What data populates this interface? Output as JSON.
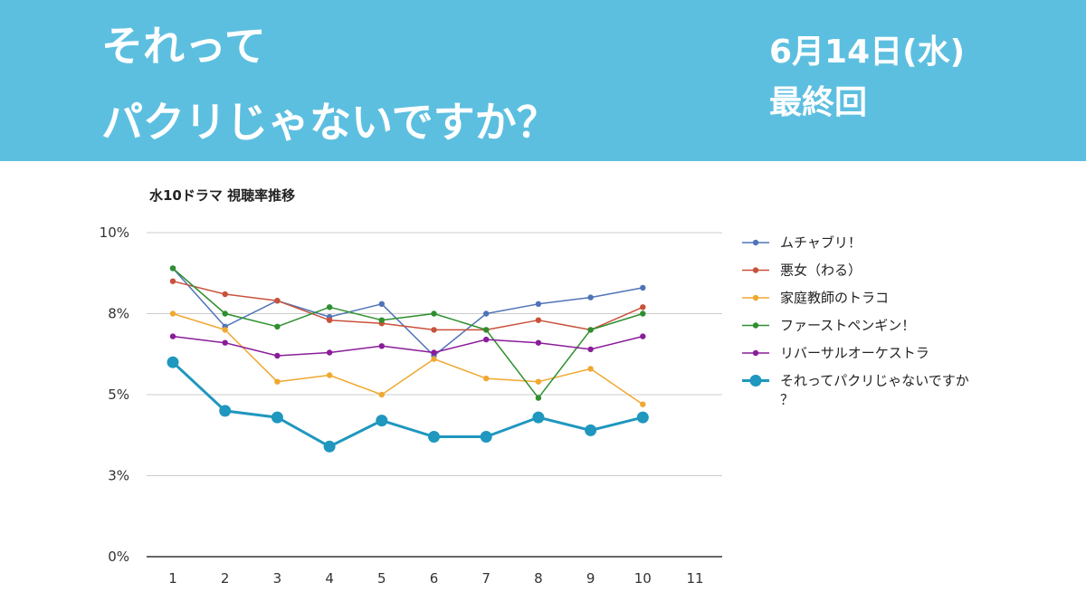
{
  "banner": {
    "title_line1": "それって",
    "title_line2": "パクリじゃないですか？",
    "date": "6月14日(水)",
    "note": "最終回",
    "background": "#5dbfe0"
  },
  "chart_data": {
    "type": "line",
    "title": "水10ドラマ 視聴率推移",
    "xlabel": "",
    "ylabel": "",
    "categories": [
      "1",
      "2",
      "3",
      "4",
      "5",
      "6",
      "7",
      "8",
      "9",
      "10",
      "11"
    ],
    "y_tick_labels": [
      "10%",
      "8%",
      "5%",
      "3%",
      "0%"
    ],
    "y_tick_values": [
      10,
      7.5,
      5,
      2.5,
      0
    ],
    "ylim": [
      0,
      10
    ],
    "grid": true,
    "legend_position": "right",
    "series": [
      {
        "name": "ムチャブリ！",
        "color": "#4f74b8",
        "values": [
          8.9,
          7.1,
          7.9,
          7.4,
          7.8,
          6.2,
          7.5,
          7.8,
          8.0,
          8.3,
          null
        ]
      },
      {
        "name": "悪女（わる）",
        "color": "#c9513b",
        "values": [
          8.5,
          8.1,
          7.9,
          7.3,
          7.2,
          7.0,
          7.0,
          7.3,
          7.0,
          7.7,
          null
        ]
      },
      {
        "name": "家庭教師のトラコ",
        "color": "#f0a830",
        "values": [
          7.5,
          7.0,
          5.4,
          5.6,
          5.0,
          6.1,
          5.5,
          5.4,
          5.8,
          4.7,
          null
        ]
      },
      {
        "name": "ファーストペンギン！",
        "color": "#2e8f2e",
        "values": [
          8.9,
          7.5,
          7.1,
          7.7,
          7.3,
          7.5,
          7.0,
          4.9,
          7.0,
          7.5,
          null
        ]
      },
      {
        "name": "リバーサルオーケストラ",
        "color": "#8a1d9a",
        "values": [
          6.8,
          6.6,
          6.2,
          6.3,
          6.5,
          6.3,
          6.7,
          6.6,
          6.4,
          6.8,
          null
        ]
      },
      {
        "name": "それってパクリじゃないですか？",
        "color": "#1f97be",
        "values": [
          6.0,
          4.5,
          4.3,
          3.4,
          4.2,
          3.7,
          3.7,
          4.3,
          3.9,
          4.3,
          null
        ]
      }
    ]
  }
}
